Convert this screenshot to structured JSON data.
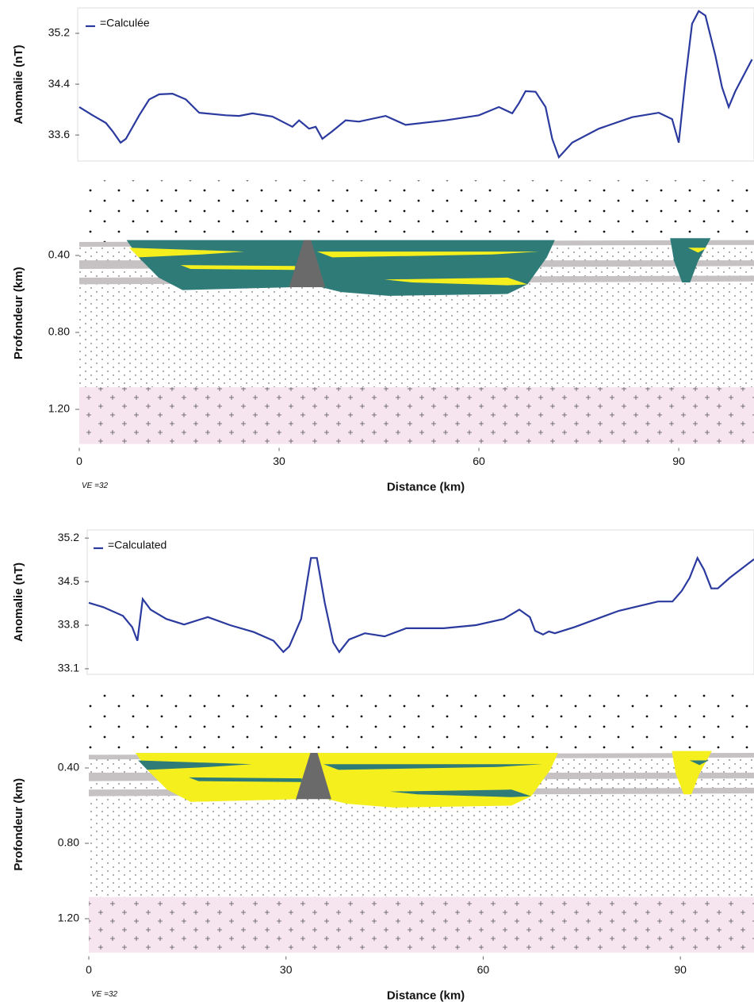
{
  "chart_data": [
    {
      "type": "line",
      "ylabel": "Anomalie (nT)",
      "x": [
        0,
        2,
        4,
        5,
        6.2,
        7,
        9,
        10.5,
        12,
        14,
        16,
        18,
        22,
        24,
        26,
        29,
        32,
        33,
        34.5,
        35.5,
        36.5,
        38,
        40,
        42,
        46,
        49,
        55,
        60,
        63,
        65,
        66,
        67,
        68.5,
        70,
        71,
        72,
        74,
        78,
        83,
        87,
        89,
        90,
        91,
        92,
        93,
        94,
        95.5,
        96.5,
        97.5,
        98.5,
        101
      ],
      "series": [
        {
          "name": "=Calculée",
          "color": "#2b3a9e",
          "values": [
            34.04,
            33.91,
            33.79,
            33.66,
            33.48,
            33.54,
            33.91,
            34.16,
            34.24,
            34.25,
            34.16,
            33.95,
            33.91,
            33.9,
            33.94,
            33.89,
            33.73,
            33.83,
            33.7,
            33.73,
            33.54,
            33.66,
            33.83,
            33.81,
            33.9,
            33.76,
            33.83,
            33.91,
            34.04,
            33.94,
            34.1,
            34.29,
            34.28,
            34.04,
            33.54,
            33.25,
            33.48,
            33.7,
            33.88,
            33.95,
            33.85,
            33.48,
            34.48,
            35.35,
            35.55,
            35.48,
            34.85,
            34.35,
            34.04,
            34.29,
            34.79
          ]
        }
      ],
      "xlim": [
        0,
        101.3
      ],
      "ylim": [
        33.19,
        35.6
      ],
      "yticks": [
        33.6,
        34.4,
        35.2
      ]
    },
    {
      "type": "section",
      "xlabel": "Distance (km)",
      "ylabel": "Profondeur (km)",
      "annotation": "VE =32",
      "xlim": [
        0,
        101.3
      ],
      "xticks": [
        0,
        30,
        60,
        90
      ],
      "ylim": [
        1.4,
        0
      ],
      "yticks": [
        {
          "value": 0.4,
          "label": "0.40"
        },
        {
          "value": 0.8,
          "label": "0.80"
        },
        {
          "value": 1.2,
          "label": "1.20"
        }
      ]
    },
    {
      "type": "line",
      "ylabel": "Anomalie (nT)",
      "x": [
        0,
        2.2,
        5.2,
        6.6,
        7.4,
        8.2,
        9.4,
        11.8,
        14.5,
        18.1,
        21.5,
        25.1,
        28.1,
        29.6,
        30.5,
        32.3,
        33.8,
        34.7,
        35.9,
        37.2,
        38.1,
        39.6,
        42,
        45,
        48.3,
        54,
        58.9,
        63.1,
        65.5,
        67.1,
        67.9,
        69.1,
        70,
        70.9,
        73.9,
        80.6,
        86.6,
        88.8,
        90.2,
        91.4,
        92.6,
        93.6,
        94.7,
        95.7,
        97.5,
        101.2
      ],
      "series": [
        {
          "name": "=Calculated",
          "color": "#2b3a9e",
          "values": [
            34.16,
            34.09,
            33.95,
            33.77,
            33.55,
            34.22,
            34.05,
            33.9,
            33.81,
            33.93,
            33.8,
            33.69,
            33.55,
            33.37,
            33.46,
            33.9,
            34.88,
            34.88,
            34.16,
            33.52,
            33.37,
            33.57,
            33.67,
            33.62,
            33.75,
            33.75,
            33.8,
            33.9,
            34.05,
            33.93,
            33.71,
            33.65,
            33.7,
            33.67,
            33.77,
            34.03,
            34.18,
            34.18,
            34.35,
            34.56,
            34.88,
            34.69,
            34.39,
            34.39,
            34.56,
            34.86
          ]
        }
      ],
      "xlim": [
        0,
        101.2
      ],
      "ylim": [
        33.01,
        35.33
      ],
      "yticks": [
        33.1,
        33.8,
        34.5,
        35.2
      ]
    },
    {
      "type": "section",
      "xlabel": "Distance (km)",
      "ylabel": "Profondeur (km)",
      "annotation": "VE =32",
      "xlim": [
        0,
        101.2
      ],
      "xticks": [
        0,
        30,
        60,
        90
      ],
      "ylim": [
        1.4,
        0
      ],
      "yticks": [
        {
          "value": 0.4,
          "label": "0.40"
        },
        {
          "value": 0.8,
          "label": "0.80"
        },
        {
          "value": 1.2,
          "label": "1.20"
        }
      ]
    }
  ]
}
